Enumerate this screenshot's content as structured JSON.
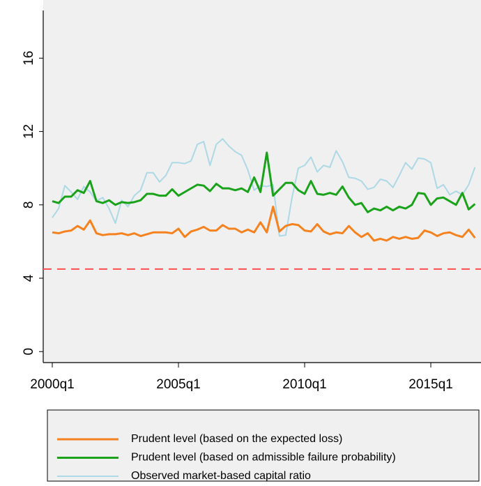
{
  "chart_data": {
    "type": "line",
    "x": [
      "2000q1",
      "2000q2",
      "2000q3",
      "2000q4",
      "2001q1",
      "2001q2",
      "2001q3",
      "2001q4",
      "2002q1",
      "2002q2",
      "2002q3",
      "2002q4",
      "2003q1",
      "2003q2",
      "2003q3",
      "2003q4",
      "2004q1",
      "2004q2",
      "2004q3",
      "2004q4",
      "2005q1",
      "2005q2",
      "2005q3",
      "2005q4",
      "2006q1",
      "2006q2",
      "2006q3",
      "2006q4",
      "2007q1",
      "2007q2",
      "2007q3",
      "2007q4",
      "2008q1",
      "2008q2",
      "2008q3",
      "2008q4",
      "2009q1",
      "2009q2",
      "2009q3",
      "2009q4",
      "2010q1",
      "2010q2",
      "2010q3",
      "2010q4",
      "2011q1",
      "2011q2",
      "2011q3",
      "2011q4",
      "2012q1",
      "2012q2",
      "2012q3",
      "2012q4",
      "2013q1",
      "2013q2",
      "2013q3",
      "2013q4",
      "2014q1",
      "2014q2",
      "2014q3",
      "2014q4",
      "2015q1",
      "2015q2",
      "2015q3",
      "2015q4",
      "2016q1",
      "2016q2",
      "2016q3",
      "2016q4"
    ],
    "series": [
      {
        "name": "Prudent level (based on the expected loss)",
        "color": "#f5821f",
        "width": 3,
        "values": [
          6.5,
          6.45,
          6.55,
          6.6,
          6.85,
          6.65,
          7.15,
          6.45,
          6.35,
          6.4,
          6.4,
          6.45,
          6.35,
          6.45,
          6.3,
          6.4,
          6.5,
          6.5,
          6.5,
          6.45,
          6.7,
          6.25,
          6.55,
          6.65,
          6.8,
          6.6,
          6.6,
          6.9,
          6.7,
          6.7,
          6.5,
          6.65,
          6.5,
          7.05,
          6.5,
          7.9,
          6.55,
          6.85,
          6.95,
          6.9,
          6.6,
          6.55,
          6.95,
          6.55,
          6.4,
          6.5,
          6.45,
          6.85,
          6.5,
          6.25,
          6.45,
          6.05,
          6.15,
          6.05,
          6.25,
          6.15,
          6.25,
          6.15,
          6.2,
          6.6,
          6.5,
          6.3,
          6.45,
          6.5,
          6.35,
          6.25,
          6.65,
          6.2
        ]
      },
      {
        "name": "Prudent level (based on admissible failure probability)",
        "color": "#1aa31a",
        "width": 3,
        "values": [
          8.2,
          8.1,
          8.45,
          8.45,
          8.8,
          8.65,
          9.3,
          8.2,
          8.1,
          8.25,
          8.0,
          8.15,
          8.1,
          8.15,
          8.25,
          8.6,
          8.6,
          8.5,
          8.5,
          8.85,
          8.5,
          8.7,
          8.9,
          9.1,
          9.05,
          8.75,
          9.15,
          8.9,
          8.9,
          8.8,
          8.9,
          8.7,
          9.5,
          8.7,
          10.85,
          8.5,
          8.85,
          9.2,
          9.2,
          8.8,
          8.6,
          9.3,
          8.6,
          8.55,
          8.65,
          8.55,
          9.0,
          8.4,
          8.0,
          8.1,
          7.6,
          7.8,
          7.7,
          7.9,
          7.7,
          7.9,
          7.8,
          8.0,
          8.65,
          8.6,
          8.0,
          8.35,
          8.4,
          8.2,
          8.0,
          8.65,
          7.75,
          8.05
        ]
      },
      {
        "name": "Observed market-based capital ratio",
        "color": "#add8e6",
        "width": 2,
        "values": [
          7.3,
          7.8,
          9.05,
          8.7,
          8.3,
          9.0,
          8.7,
          8.2,
          8.4,
          7.8,
          7.0,
          8.25,
          7.9,
          8.5,
          8.8,
          9.75,
          9.75,
          9.25,
          9.6,
          10.3,
          10.3,
          10.25,
          10.4,
          11.3,
          11.45,
          10.15,
          11.3,
          11.6,
          11.2,
          10.9,
          10.7,
          9.9,
          8.8,
          9.05,
          9.0,
          9.1,
          6.3,
          6.35,
          8.4,
          10.0,
          10.15,
          10.6,
          9.8,
          10.15,
          10.05,
          10.95,
          10.35,
          9.5,
          9.45,
          9.3,
          8.85,
          8.95,
          9.4,
          9.3,
          8.95,
          9.6,
          10.3,
          9.95,
          10.55,
          10.5,
          10.3,
          8.9,
          9.1,
          8.55,
          8.75,
          8.55,
          9.1,
          10.05
        ]
      }
    ],
    "hline": {
      "value": 4.5,
      "color": "#ff4d4d"
    },
    "ylim": [
      -0.6,
      18.6
    ],
    "yticks": [
      0,
      4,
      8,
      12,
      16
    ],
    "xticks": [
      "2000q1",
      "2005q1",
      "2010q1",
      "2015q1"
    ],
    "legend": "bottom"
  }
}
